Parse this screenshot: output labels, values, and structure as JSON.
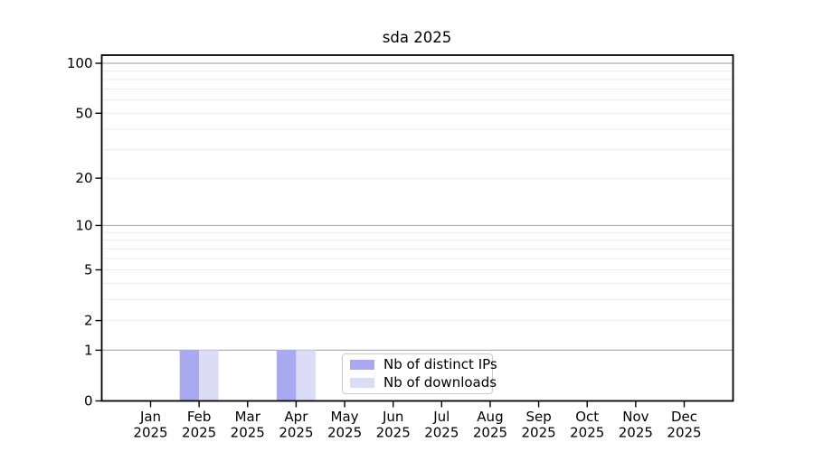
{
  "figure": {
    "background": "#ffffff"
  },
  "chart_data": {
    "type": "bar",
    "title": "sda 2025",
    "categories": [
      "Jan 2025",
      "Feb 2025",
      "Mar 2025",
      "Apr 2025",
      "May 2025",
      "Jun 2025",
      "Jul 2025",
      "Aug 2025",
      "Sep 2025",
      "Oct 2025",
      "Nov 2025",
      "Dec 2025"
    ],
    "series": [
      {
        "name": "Nb of distinct IPs",
        "color": "#a9a9f0",
        "values": [
          0,
          1,
          0,
          1,
          0,
          0,
          0,
          0,
          0,
          0,
          0,
          0
        ]
      },
      {
        "name": "Nb of downloads",
        "color": "#dcdcf7",
        "values": [
          0,
          1,
          0,
          1,
          0,
          0,
          0,
          0,
          0,
          0,
          0,
          0
        ]
      }
    ],
    "xlabel": "",
    "ylabel": "",
    "yscale": "log1p",
    "ylim": [
      0,
      100
    ],
    "yticks": [
      0,
      1,
      2,
      5,
      10,
      20,
      50,
      100
    ],
    "grid": {
      "major_values": [
        1,
        10,
        100
      ],
      "minor_values": [
        2,
        3,
        4,
        5,
        6,
        7,
        8,
        9,
        20,
        30,
        40,
        50,
        60,
        70,
        80,
        90
      ],
      "major_color": "#b0b0b0",
      "minor_color": "#ececec"
    },
    "legend": {
      "position": "inside-bottom-center"
    },
    "axis_color": "#000000",
    "tick_label_color": "#000000"
  }
}
